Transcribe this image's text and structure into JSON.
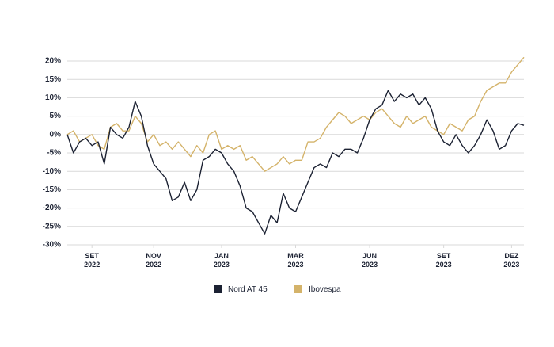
{
  "chart_data": {
    "type": "line",
    "x": [
      0,
      1,
      2,
      3,
      4,
      5,
      6,
      7,
      8,
      9,
      10,
      11,
      12,
      13,
      14,
      15,
      16,
      17,
      18,
      19,
      20,
      21,
      22,
      23,
      24,
      25,
      26,
      27,
      28,
      29,
      30,
      31,
      32,
      33,
      34,
      35,
      36,
      37,
      38,
      39,
      40,
      41,
      42,
      43,
      44,
      45,
      46,
      47,
      48,
      49,
      50,
      51,
      52,
      53,
      54,
      55,
      56,
      57,
      58,
      59,
      60,
      61,
      62,
      63,
      64,
      65,
      66,
      67,
      68,
      69,
      70,
      71,
      72,
      73,
      74
    ],
    "series": [
      {
        "name": "Nord AT 45",
        "color": "#1c2233",
        "values": [
          0,
          -5,
          -2,
          -1,
          -3,
          -2,
          -8,
          2,
          0,
          -1,
          2,
          9,
          5,
          -3,
          -8,
          -10,
          -12,
          -18,
          -17,
          -13,
          -18,
          -15,
          -7,
          -6,
          -4,
          -5,
          -8,
          -10,
          -14,
          -20,
          -21,
          -24,
          -27,
          -22,
          -24,
          -16,
          -20,
          -21,
          -17,
          -13,
          -9,
          -8,
          -9,
          -5,
          -6,
          -4,
          -4,
          -5,
          -1,
          4,
          7,
          8,
          12,
          9,
          11,
          10,
          11,
          8,
          10,
          7,
          1,
          -2,
          -3,
          0,
          -3,
          -5,
          -3,
          0,
          4,
          1,
          -4,
          -3,
          1,
          3,
          2.5
        ]
      },
      {
        "name": "Ibovespa",
        "color": "#d4b36a",
        "values": [
          0,
          1,
          -2,
          -1,
          0,
          -3,
          -4,
          2,
          3,
          1,
          1,
          5,
          3,
          -2,
          0,
          -3,
          -2,
          -4,
          -2,
          -4,
          -6,
          -3,
          -5,
          0,
          1,
          -4,
          -3,
          -4,
          -3,
          -7,
          -6,
          -8,
          -10,
          -9,
          -8,
          -6,
          -8,
          -7,
          -7,
          -2,
          -2,
          -1,
          2,
          4,
          6,
          5,
          3,
          4,
          5,
          4,
          6,
          7,
          5,
          3,
          2,
          5,
          3,
          4,
          5,
          2,
          1,
          0,
          3,
          2,
          1,
          4,
          5,
          9,
          12,
          13,
          14,
          14,
          17,
          19,
          21
        ]
      }
    ],
    "xlim": [
      0,
      74
    ],
    "xticks": [
      {
        "value": 4,
        "label": "SET\n2022"
      },
      {
        "value": 14,
        "label": "NOV\n2022"
      },
      {
        "value": 25,
        "label": "JAN\n2023"
      },
      {
        "value": 37,
        "label": "MAR\n2023"
      },
      {
        "value": 49,
        "label": "JUN\n2023"
      },
      {
        "value": 61,
        "label": "SET\n2023"
      },
      {
        "value": 72,
        "label": "DEZ\n2023"
      }
    ],
    "ylim": [
      -30,
      20
    ],
    "yticks": [
      {
        "value": 20,
        "label": "20%"
      },
      {
        "value": 15,
        "label": "15%"
      },
      {
        "value": 10,
        "label": "10%"
      },
      {
        "value": 5,
        "label": "5%"
      },
      {
        "value": 0,
        "label": "0%"
      },
      {
        "value": -5,
        "label": "-5%"
      },
      {
        "value": -10,
        "label": "-10%"
      },
      {
        "value": -15,
        "label": "-15%"
      },
      {
        "value": -20,
        "label": "-20%"
      },
      {
        "value": -25,
        "label": "-25%"
      },
      {
        "value": -30,
        "label": "-30%"
      }
    ],
    "grid": true
  }
}
